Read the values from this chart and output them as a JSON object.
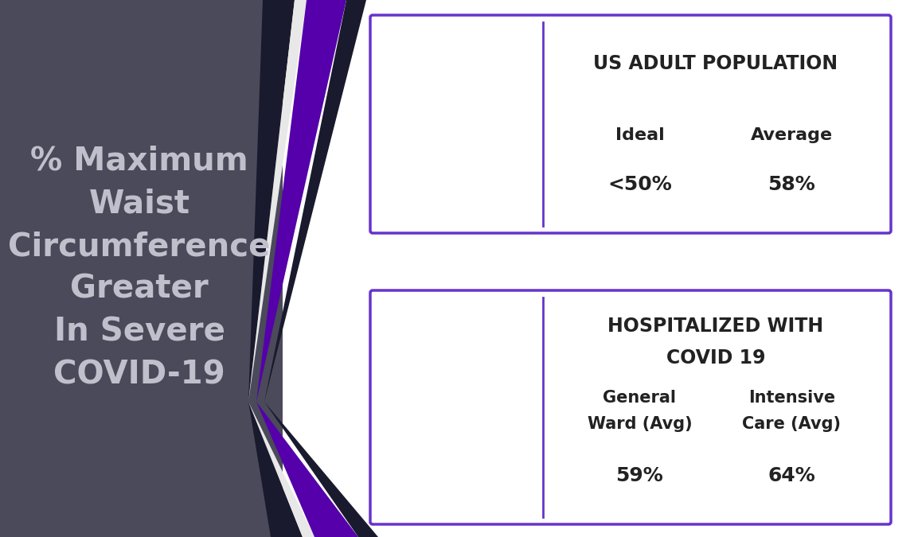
{
  "bg_color": "#ffffff",
  "left_panel_bg": "#4a4a5a",
  "left_text": "% Maximum\nWaist\nCircumference\nGreater\nIn Severe\nCOVID-19",
  "left_text_color": "#c0c0cc",
  "box1_title": "US ADULT POPULATION",
  "box1_col1_label": "Ideal",
  "box1_col1_value": "<50%",
  "box1_col2_label": "Average",
  "box1_col2_value": "58%",
  "box2_title1": "HOSPITALIZED WITH",
  "box2_title2": "COVID 19",
  "box2_col1_label1": "General",
  "box2_col1_label2": "Ward (Avg)",
  "box2_col1_value": "59%",
  "box2_col2_label1": "Intensive",
  "box2_col2_label2": "Care (Avg)",
  "box2_col2_value": "64%",
  "box_border_color": "#6633cc",
  "box_fill_color": "#ffffff",
  "box_text_color": "#222222",
  "stripe_dark": "#1a1a2e",
  "stripe_white": "#e8e8e8",
  "stripe_purple": "#5500aa"
}
